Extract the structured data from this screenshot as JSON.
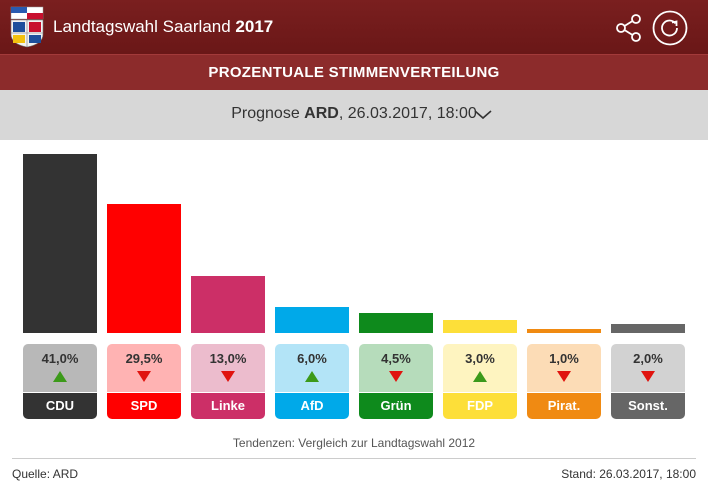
{
  "header": {
    "title_prefix": "Landtagswahl Saarland",
    "title_year": "2017",
    "crest_icon": "saarland-crest-icon",
    "share_icon": "share-icon",
    "refresh_icon": "refresh-icon"
  },
  "subheader": {
    "title": "PROZENTUALE  STIMMENVERTEILUNG"
  },
  "selector": {
    "prefix": "Prognose ",
    "source": "ARD",
    "suffix": ", 26.03.2017, 18:00"
  },
  "chart_data": {
    "type": "bar",
    "categories": [
      "CDU",
      "SPD",
      "Linke",
      "AfD",
      "Grün",
      "FDP",
      "Pirat.",
      "Sonst."
    ],
    "values": [
      41.0,
      29.5,
      13.0,
      6.0,
      4.5,
      3.0,
      1.0,
      2.0
    ],
    "value_labels": [
      "41,0%",
      "29,5%",
      "13,0%",
      "6,0%",
      "4,5%",
      "3,0%",
      "1,0%",
      "2,0%"
    ],
    "trends": [
      "up",
      "down",
      "down",
      "up",
      "down",
      "up",
      "down",
      "down"
    ],
    "colors": [
      "#333333",
      "#ff0000",
      "#cc2f67",
      "#00a9e9",
      "#0e8a1c",
      "#fddf39",
      "#f08a12",
      "#666666"
    ],
    "light_colors": [
      "#b8b8b8",
      "#ffb3b3",
      "#ecbccd",
      "#b3e4f7",
      "#b6dcbb",
      "#fef4c0",
      "#fcdcb6",
      "#d2d2d2"
    ],
    "label_text_colors": [
      "#ffffff",
      "#ffffff",
      "#ffffff",
      "#ffffff",
      "#ffffff",
      "#ffffff",
      "#ffffff",
      "#ffffff"
    ],
    "ylim": [
      0,
      41
    ],
    "trend_colors": {
      "up": "#3c9a1a",
      "down": "#e0140f"
    }
  },
  "footer": {
    "trend_note": "Tendenzen: Vergleich zur Landtagswahl 2012",
    "source": "Quelle: ARD",
    "stand": "Stand: 26.03.2017, 18:00"
  }
}
